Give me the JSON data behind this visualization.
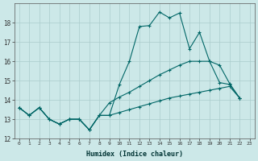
{
  "xlabel": "Humidex (Indice chaleur)",
  "bg_color": "#cce8e8",
  "grid_color": "#aacccc",
  "line_color": "#006666",
  "xlim": [
    -0.5,
    23.5
  ],
  "ylim": [
    12,
    19
  ],
  "yticks": [
    12,
    13,
    14,
    15,
    16,
    17,
    18
  ],
  "xticks": [
    0,
    1,
    2,
    3,
    4,
    5,
    6,
    7,
    8,
    9,
    10,
    11,
    12,
    13,
    14,
    15,
    16,
    17,
    18,
    19,
    20,
    21,
    22,
    23
  ],
  "line1_x": [
    0,
    1,
    2,
    3,
    4,
    5,
    6,
    7,
    8,
    9,
    10,
    11,
    12,
    13,
    14,
    15,
    16,
    17,
    18,
    19,
    20,
    21,
    22
  ],
  "line1_y": [
    13.6,
    13.2,
    13.6,
    13.0,
    12.75,
    13.0,
    13.0,
    12.45,
    13.2,
    13.2,
    14.8,
    16.0,
    17.8,
    17.85,
    18.55,
    18.25,
    18.5,
    16.65,
    17.5,
    16.0,
    14.9,
    14.8,
    14.1
  ],
  "line2_x": [
    0,
    1,
    2,
    3,
    4,
    5,
    6,
    7,
    8,
    9,
    10,
    11,
    12,
    13,
    14,
    15,
    16,
    17,
    18,
    19,
    20,
    21,
    22
  ],
  "line2_y": [
    13.6,
    13.2,
    13.6,
    13.0,
    12.75,
    13.0,
    13.0,
    12.45,
    13.2,
    13.85,
    14.15,
    14.4,
    14.7,
    15.0,
    15.3,
    15.55,
    15.8,
    16.0,
    16.0,
    16.0,
    15.8,
    14.85,
    14.1
  ],
  "line3_x": [
    0,
    1,
    2,
    3,
    4,
    5,
    6,
    7,
    8,
    9,
    10,
    11,
    12,
    13,
    14,
    15,
    16,
    17,
    18,
    19,
    20,
    21,
    22
  ],
  "line3_y": [
    13.6,
    13.2,
    13.6,
    13.0,
    12.75,
    13.0,
    13.0,
    12.45,
    13.2,
    13.2,
    13.35,
    13.5,
    13.65,
    13.8,
    13.95,
    14.1,
    14.2,
    14.3,
    14.4,
    14.5,
    14.6,
    14.7,
    14.1
  ]
}
